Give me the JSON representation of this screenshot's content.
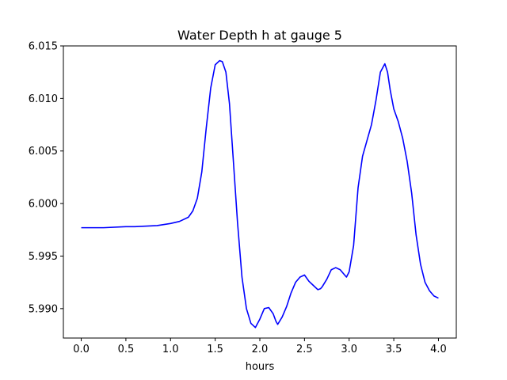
{
  "chart_data": {
    "type": "line",
    "title": "Water Depth h at gauge 5",
    "xlabel": "hours",
    "ylabel": "",
    "xlim": [
      -0.2,
      4.2
    ],
    "ylim": [
      5.9872,
      6.015
    ],
    "xticks": [
      0.0,
      0.5,
      1.0,
      1.5,
      2.0,
      2.5,
      3.0,
      3.5,
      4.0
    ],
    "xtick_labels": [
      "0.0",
      "0.5",
      "1.0",
      "1.5",
      "2.0",
      "2.5",
      "3.0",
      "3.5",
      "4.0"
    ],
    "yticks": [
      5.99,
      5.995,
      6.0,
      6.005,
      6.01,
      6.015
    ],
    "ytick_labels": [
      "5.990",
      "5.995",
      "6.000",
      "6.005",
      "6.010",
      "6.015"
    ],
    "grid": false,
    "series": [
      {
        "name": "",
        "color": "#0000ff",
        "x": [
          0.0,
          0.25,
          0.5,
          0.6,
          0.85,
          1.0,
          1.1,
          1.2,
          1.25,
          1.3,
          1.35,
          1.4,
          1.45,
          1.5,
          1.55,
          1.58,
          1.62,
          1.66,
          1.7,
          1.75,
          1.8,
          1.85,
          1.9,
          1.95,
          2.0,
          2.05,
          2.1,
          2.15,
          2.18,
          2.2,
          2.25,
          2.3,
          2.35,
          2.4,
          2.45,
          2.5,
          2.55,
          2.6,
          2.65,
          2.68,
          2.7,
          2.75,
          2.8,
          2.85,
          2.9,
          2.93,
          2.97,
          3.0,
          3.05,
          3.1,
          3.15,
          3.2,
          3.25,
          3.3,
          3.35,
          3.4,
          3.43,
          3.46,
          3.5,
          3.55,
          3.6,
          3.65,
          3.7,
          3.75,
          3.8,
          3.85,
          3.9,
          3.95,
          4.0
        ],
        "values": [
          5.9977,
          5.9977,
          5.9978,
          5.9978,
          5.9979,
          5.9981,
          5.9983,
          5.9987,
          5.9993,
          6.0005,
          6.003,
          6.0072,
          6.011,
          6.0132,
          6.0136,
          6.0135,
          6.0125,
          6.0095,
          6.0045,
          5.9982,
          5.993,
          5.99,
          5.9886,
          5.9882,
          5.989,
          5.99,
          5.9901,
          5.9895,
          5.9888,
          5.9885,
          5.9892,
          5.9902,
          5.9915,
          5.9925,
          5.993,
          5.9932,
          5.9926,
          5.9922,
          5.9918,
          5.9919,
          5.9921,
          5.9928,
          5.9937,
          5.9939,
          5.9937,
          5.9934,
          5.993,
          5.9935,
          5.996,
          6.0015,
          6.0045,
          6.006,
          6.0075,
          6.0098,
          6.0125,
          6.0133,
          6.0125,
          6.0108,
          6.009,
          6.0078,
          6.0062,
          6.004,
          6.001,
          5.997,
          5.9942,
          5.9925,
          5.9917,
          5.9912,
          5.991
        ]
      }
    ]
  }
}
